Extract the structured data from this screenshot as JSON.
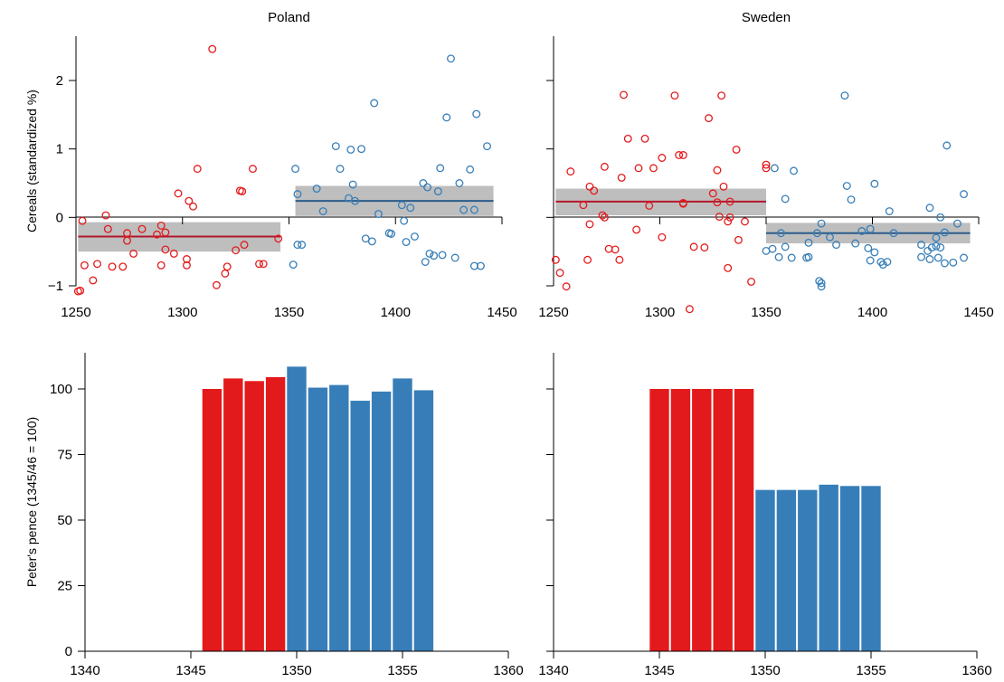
{
  "colors": {
    "before": "#e31a1c",
    "after": "#377eb8",
    "before_line": "#b2182b",
    "after_line": "#2b5c8a",
    "band": "#bebebe"
  },
  "chart_data": [
    {
      "type": "scatter",
      "panel": "top-left",
      "title": "Poland",
      "ylabel": "Cereals (standardized %)",
      "xlabel": "",
      "xlim": [
        1250,
        1450
      ],
      "ylim": [
        -1.0,
        2.0
      ],
      "xticks": [
        1250,
        1300,
        1350,
        1400,
        1450
      ],
      "yticks": [
        -1,
        0,
        1,
        2
      ],
      "show_y_labels": true,
      "segments": [
        {
          "x0": 1251,
          "x1": 1346,
          "mean": -0.28,
          "lo": -0.5,
          "hi": -0.07
        },
        {
          "x0": 1353,
          "x1": 1446,
          "mean": 0.24,
          "lo": 0.02,
          "hi": 0.46
        }
      ],
      "series": [
        {
          "group": "before",
          "points": [
            [
              1251,
              -1.08
            ],
            [
              1252,
              -1.07
            ],
            [
              1253,
              -0.05
            ],
            [
              1254,
              -0.7
            ],
            [
              1258,
              -0.92
            ],
            [
              1260,
              -0.68
            ],
            [
              1264,
              0.03
            ],
            [
              1265,
              -0.17
            ],
            [
              1267,
              -0.72
            ],
            [
              1272,
              -0.72
            ],
            [
              1274,
              -0.23
            ],
            [
              1274,
              -0.34
            ],
            [
              1277,
              -0.53
            ],
            [
              1281,
              -0.17
            ],
            [
              1288,
              -0.25
            ],
            [
              1290,
              -0.12
            ],
            [
              1290,
              -0.7
            ],
            [
              1292,
              -0.22
            ],
            [
              1292,
              -0.47
            ],
            [
              1296,
              -0.53
            ],
            [
              1298,
              0.35
            ],
            [
              1302,
              -0.7
            ],
            [
              1302,
              -0.61
            ],
            [
              1303,
              0.24
            ],
            [
              1305,
              0.16
            ],
            [
              1307,
              0.71
            ],
            [
              1314,
              2.46
            ],
            [
              1316,
              -0.99
            ],
            [
              1320,
              -0.82
            ],
            [
              1321,
              -0.72
            ],
            [
              1325,
              -0.48
            ],
            [
              1327,
              0.39
            ],
            [
              1328,
              0.38
            ],
            [
              1329,
              -0.4
            ],
            [
              1333,
              0.71
            ],
            [
              1336,
              -0.68
            ],
            [
              1338,
              -0.68
            ],
            [
              1345,
              -0.31
            ]
          ]
        },
        {
          "group": "after",
          "points": [
            [
              1352,
              -0.69
            ],
            [
              1353,
              0.71
            ],
            [
              1354,
              0.34
            ],
            [
              1354,
              -0.4
            ],
            [
              1356,
              -0.4
            ],
            [
              1363,
              0.42
            ],
            [
              1366,
              0.09
            ],
            [
              1372,
              1.04
            ],
            [
              1374,
              0.71
            ],
            [
              1378,
              0.28
            ],
            [
              1379,
              0.99
            ],
            [
              1380,
              0.48
            ],
            [
              1381,
              0.24
            ],
            [
              1384,
              1.0
            ],
            [
              1386,
              -0.31
            ],
            [
              1389,
              -0.35
            ],
            [
              1390,
              1.67
            ],
            [
              1392,
              0.05
            ],
            [
              1397,
              -0.23
            ],
            [
              1398,
              -0.24
            ],
            [
              1403,
              0.18
            ],
            [
              1404,
              -0.05
            ],
            [
              1405,
              -0.36
            ],
            [
              1407,
              0.14
            ],
            [
              1409,
              -0.28
            ],
            [
              1413,
              0.5
            ],
            [
              1414,
              -0.65
            ],
            [
              1415,
              0.44
            ],
            [
              1416,
              -0.53
            ],
            [
              1418,
              -0.56
            ],
            [
              1420,
              0.38
            ],
            [
              1421,
              0.72
            ],
            [
              1422,
              -0.55
            ],
            [
              1424,
              1.46
            ],
            [
              1426,
              2.32
            ],
            [
              1428,
              -0.59
            ],
            [
              1430,
              0.5
            ],
            [
              1432,
              0.11
            ],
            [
              1435,
              0.7
            ],
            [
              1437,
              0.11
            ],
            [
              1438,
              1.51
            ],
            [
              1437,
              -0.71
            ],
            [
              1440,
              -0.71
            ],
            [
              1443,
              1.04
            ]
          ]
        }
      ]
    },
    {
      "type": "scatter",
      "panel": "top-right",
      "title": "Sweden",
      "ylabel": "",
      "xlabel": "",
      "xlim": [
        1250,
        1450
      ],
      "ylim": [
        -1.0,
        2.0
      ],
      "xticks": [
        1250,
        1300,
        1350,
        1400,
        1450
      ],
      "yticks": [
        -1,
        0,
        1,
        2
      ],
      "show_y_labels": false,
      "segments": [
        {
          "x0": 1251,
          "x1": 1350,
          "mean": 0.23,
          "lo": 0.03,
          "hi": 0.42
        },
        {
          "x0": 1350,
          "x1": 1446,
          "mean": -0.23,
          "lo": -0.38,
          "hi": -0.08
        }
      ],
      "series": [
        {
          "group": "before",
          "points": [
            [
              1251,
              -0.62
            ],
            [
              1253,
              -0.81
            ],
            [
              1256,
              -1.01
            ],
            [
              1258,
              0.67
            ],
            [
              1264,
              0.18
            ],
            [
              1266,
              -0.62
            ],
            [
              1267,
              0.45
            ],
            [
              1267,
              -0.1
            ],
            [
              1269,
              0.39
            ],
            [
              1273,
              0.03
            ],
            [
              1274,
              0.74
            ],
            [
              1274,
              0.0
            ],
            [
              1276,
              -0.46
            ],
            [
              1279,
              -0.47
            ],
            [
              1281,
              -0.62
            ],
            [
              1282,
              0.58
            ],
            [
              1283,
              1.79
            ],
            [
              1285,
              1.15
            ],
            [
              1289,
              -0.18
            ],
            [
              1290,
              0.72
            ],
            [
              1293,
              1.15
            ],
            [
              1295,
              0.17
            ],
            [
              1297,
              0.72
            ],
            [
              1301,
              0.87
            ],
            [
              1301,
              -0.29
            ],
            [
              1307,
              1.78
            ],
            [
              1309,
              0.91
            ],
            [
              1311,
              0.91
            ],
            [
              1311,
              0.21
            ],
            [
              1311,
              0.2
            ],
            [
              1314,
              -1.34
            ],
            [
              1316,
              -0.43
            ],
            [
              1321,
              -0.44
            ],
            [
              1323,
              1.45
            ],
            [
              1325,
              0.35
            ],
            [
              1327,
              0.22
            ],
            [
              1327,
              0.69
            ],
            [
              1328,
              0.01
            ],
            [
              1329,
              1.78
            ],
            [
              1330,
              0.45
            ],
            [
              1332,
              -0.06
            ],
            [
              1332,
              -0.74
            ],
            [
              1333,
              0.23
            ],
            [
              1333,
              0.0
            ],
            [
              1336,
              0.99
            ],
            [
              1337,
              -0.33
            ],
            [
              1340,
              -0.06
            ],
            [
              1343,
              -0.94
            ],
            [
              1350,
              0.77
            ],
            [
              1350,
              0.72
            ]
          ]
        },
        {
          "group": "after",
          "points": [
            [
              1350,
              -0.49
            ],
            [
              1353,
              -0.46
            ],
            [
              1354,
              0.72
            ],
            [
              1356,
              -0.58
            ],
            [
              1357,
              -0.23
            ],
            [
              1359,
              -0.43
            ],
            [
              1359,
              0.27
            ],
            [
              1362,
              -0.59
            ],
            [
              1363,
              0.68
            ],
            [
              1369,
              -0.59
            ],
            [
              1370,
              -0.58
            ],
            [
              1370,
              -0.37
            ],
            [
              1374,
              -0.23
            ],
            [
              1375,
              -0.93
            ],
            [
              1376,
              -0.96
            ],
            [
              1376,
              -1.01
            ],
            [
              1376,
              -0.09
            ],
            [
              1380,
              -0.29
            ],
            [
              1383,
              -0.4
            ],
            [
              1387,
              1.78
            ],
            [
              1388,
              0.46
            ],
            [
              1390,
              0.26
            ],
            [
              1392,
              -0.38
            ],
            [
              1395,
              -0.2
            ],
            [
              1398,
              -0.45
            ],
            [
              1399,
              -0.63
            ],
            [
              1399,
              -0.17
            ],
            [
              1401,
              0.49
            ],
            [
              1401,
              -0.51
            ],
            [
              1404,
              -0.65
            ],
            [
              1405,
              -0.69
            ],
            [
              1407,
              -0.65
            ],
            [
              1408,
              0.09
            ],
            [
              1410,
              -0.23
            ],
            [
              1423,
              -0.4
            ],
            [
              1423,
              -0.58
            ],
            [
              1426,
              -0.49
            ],
            [
              1427,
              0.14
            ],
            [
              1427,
              -0.61
            ],
            [
              1428,
              -0.44
            ],
            [
              1430,
              -0.3
            ],
            [
              1430,
              -0.42
            ],
            [
              1431,
              -0.59
            ],
            [
              1432,
              -0.44
            ],
            [
              1432,
              0.0
            ],
            [
              1434,
              -0.67
            ],
            [
              1434,
              -0.22
            ],
            [
              1435,
              1.05
            ],
            [
              1438,
              -0.66
            ],
            [
              1440,
              -0.09
            ],
            [
              1443,
              0.34
            ],
            [
              1443,
              -0.59
            ]
          ]
        }
      ]
    },
    {
      "type": "bar",
      "panel": "bottom-left",
      "title": "",
      "ylabel": "Peter's pence (1345/46 = 100)",
      "xlabel": "",
      "xlim": [
        1340,
        1360
      ],
      "ylim": [
        0,
        110
      ],
      "xticks": [
        1340,
        1345,
        1350,
        1355,
        1360
      ],
      "yticks": [
        0,
        25,
        50,
        75,
        100
      ],
      "show_y_labels": true,
      "bars": [
        {
          "x": 1346,
          "value": 100.0,
          "group": "before"
        },
        {
          "x": 1347,
          "value": 104.0,
          "group": "before"
        },
        {
          "x": 1348,
          "value": 103.0,
          "group": "before"
        },
        {
          "x": 1349,
          "value": 104.5,
          "group": "before"
        },
        {
          "x": 1350,
          "value": 108.5,
          "group": "after"
        },
        {
          "x": 1351,
          "value": 100.5,
          "group": "after"
        },
        {
          "x": 1352,
          "value": 101.5,
          "group": "after"
        },
        {
          "x": 1353,
          "value": 95.5,
          "group": "after"
        },
        {
          "x": 1354,
          "value": 99.0,
          "group": "after"
        },
        {
          "x": 1355,
          "value": 104.0,
          "group": "after"
        },
        {
          "x": 1356,
          "value": 99.5,
          "group": "after"
        }
      ]
    },
    {
      "type": "bar",
      "panel": "bottom-right",
      "title": "",
      "ylabel": "",
      "xlabel": "",
      "xlim": [
        1340,
        1360
      ],
      "ylim": [
        0,
        110
      ],
      "xticks": [
        1340,
        1345,
        1350,
        1355,
        1360
      ],
      "yticks": [
        0,
        25,
        50,
        75,
        100
      ],
      "show_y_labels": false,
      "bars": [
        {
          "x": 1345,
          "value": 100.0,
          "group": "before"
        },
        {
          "x": 1346,
          "value": 100.0,
          "group": "before"
        },
        {
          "x": 1347,
          "value": 100.0,
          "group": "before"
        },
        {
          "x": 1348,
          "value": 100.0,
          "group": "before"
        },
        {
          "x": 1349,
          "value": 100.0,
          "group": "before"
        },
        {
          "x": 1350,
          "value": 61.5,
          "group": "after"
        },
        {
          "x": 1351,
          "value": 61.5,
          "group": "after"
        },
        {
          "x": 1352,
          "value": 61.5,
          "group": "after"
        },
        {
          "x": 1353,
          "value": 63.5,
          "group": "after"
        },
        {
          "x": 1354,
          "value": 63.0,
          "group": "after"
        },
        {
          "x": 1355,
          "value": 63.0,
          "group": "after"
        }
      ]
    }
  ]
}
